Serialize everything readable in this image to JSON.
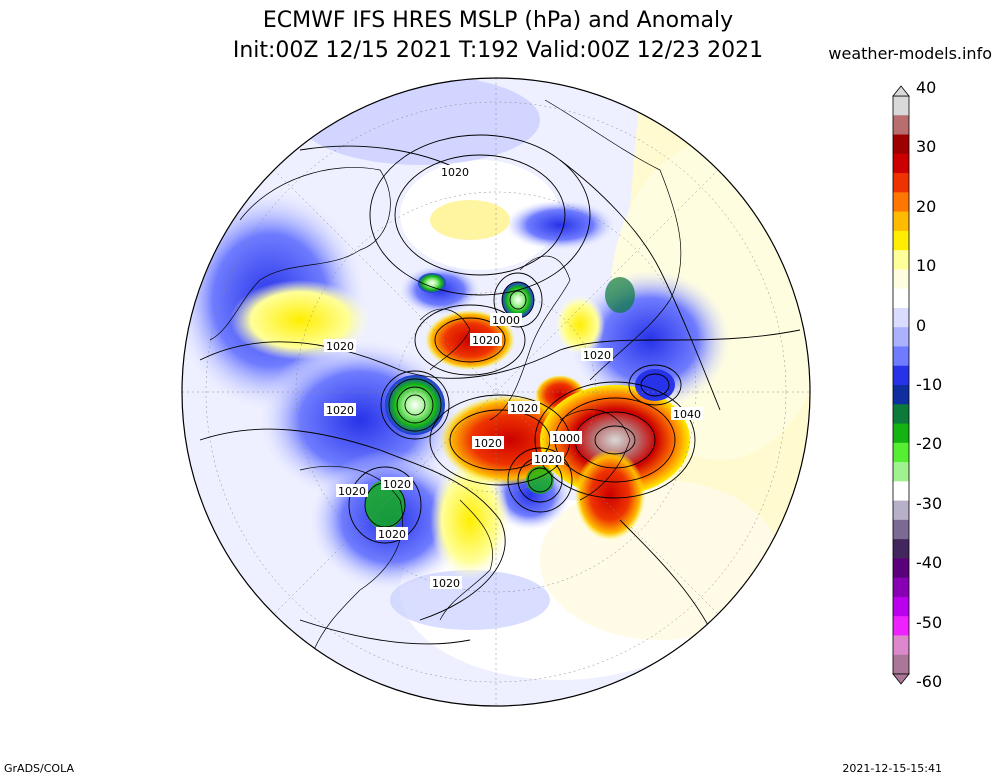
{
  "header": {
    "title_line1": "ECMWF IFS HRES MSLP (hPa) and Anomaly",
    "title_line2": "Init:00Z 12/15 2021 T:192 Valid:00Z 12/23 2021",
    "source": "weather-models.info"
  },
  "footer": {
    "left": "GrADS/COLA",
    "right": "2021-12-15-15:41"
  },
  "colorbar": {
    "labels": [
      "40",
      "30",
      "20",
      "10",
      "0",
      "-10",
      "-20",
      "-30",
      "-40",
      "-50",
      "-60"
    ],
    "colors": [
      "#d9d9d9",
      "#b86e6e",
      "#9e0000",
      "#cc0000",
      "#ee3300",
      "#ff7700",
      "#ffbb00",
      "#ffee00",
      "#ffff99",
      "#fffde0",
      "#ffffff",
      "#d9dcff",
      "#aab2ff",
      "#6f7cff",
      "#2733e8",
      "#0f2fa0",
      "#0b7a3a",
      "#12b312",
      "#55ee33",
      "#9ff28f",
      "#ffffff",
      "#b8b0c8",
      "#7a6a94",
      "#44265e",
      "#5a007a",
      "#8800b3",
      "#bb00ee",
      "#ee22ff",
      "#dd88cc",
      "#aa7799"
    ]
  },
  "map": {
    "isobar_labels": [
      {
        "text": "1020"
      },
      {
        "text": "1000"
      },
      {
        "text": "1020"
      },
      {
        "text": "1020"
      },
      {
        "text": "1020"
      },
      {
        "text": "1020"
      },
      {
        "text": "1020"
      },
      {
        "text": "1040"
      },
      {
        "text": "1020"
      },
      {
        "text": "1000"
      },
      {
        "text": "1020"
      },
      {
        "text": "1020"
      },
      {
        "text": "1020"
      },
      {
        "text": "1020"
      },
      {
        "text": "1020"
      }
    ]
  }
}
